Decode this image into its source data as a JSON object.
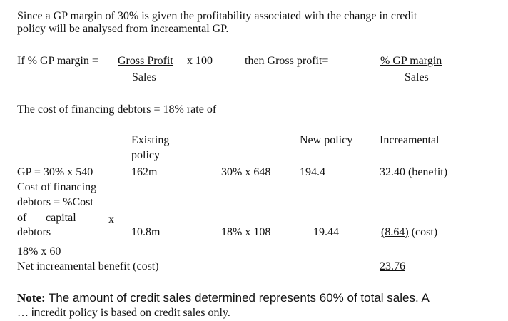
{
  "intro": {
    "line1": "Since a GP margin of 30% is given the profitability associated with the change in credit",
    "line2": "policy will be analysed from increamental GP."
  },
  "formula": {
    "left_prefix": "If % GP margin =",
    "left_numerator": "Gross Profit",
    "left_multiplier": "x 100",
    "left_denominator": "Sales",
    "middle": "then Gross profit=",
    "right_numerator": "% GP margin",
    "right_denominator": "Sales"
  },
  "cost_line": "The cost of financing debtors = 18% rate of",
  "table": {
    "headers": {
      "existing_line1": "Existing",
      "existing_line2": "policy",
      "new_policy": "New policy",
      "increamental": "Increamental"
    },
    "gp_row": {
      "label": "GP = 30% x 540",
      "existing": "162m",
      "calc": "30% x 648",
      "new_policy": "194.4",
      "increamental": "32.40 (benefit)"
    },
    "cost_row": {
      "label_line1": "Cost of financing",
      "label_line2": "debtors = %Cost",
      "label_line3_a": "of",
      "label_line3_b": "capital",
      "label_line3_c": "x",
      "label_line4": "debtors",
      "existing": "10.8m",
      "calc": "18% x 108",
      "new_policy": "19.44",
      "increamental_value": "(8.64)",
      "increamental_suffix": "(cost)",
      "label_line5": "18% x 60"
    },
    "net_row": {
      "label": "Net increamental benefit (cost)",
      "value": "23.76"
    }
  },
  "note": {
    "label": "Note:",
    "text1": "The amount of credit sales determined represents 60% of total sales. A",
    "ellipsis": "…",
    "text2_a": "in",
    "text2_b": "credit policy is based on credit sales only."
  }
}
